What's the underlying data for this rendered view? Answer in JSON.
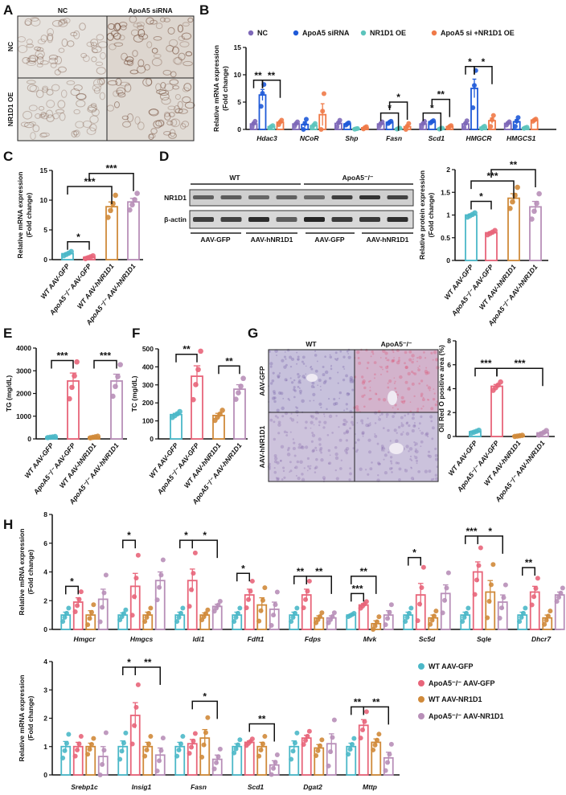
{
  "panel_labels": {
    "A": "A",
    "B": "B",
    "C": "C",
    "D": "D",
    "E": "E",
    "F": "F",
    "G": "G",
    "H": "H"
  },
  "panelA": {
    "col_headers": [
      "NC",
      "ApoA5 siRNA"
    ],
    "row_headers": [
      "NC",
      "NR1D1 OE"
    ]
  },
  "panelD_blot": {
    "groups": [
      "WT",
      "ApoA5⁻/⁻"
    ],
    "rows": [
      "NR1D1",
      "β-actin"
    ],
    "lane_labels": [
      "AAV-GFP",
      "AAV-hNR1D1",
      "AAV-GFP",
      "AAV-hNR1D1"
    ]
  },
  "panelG_images": {
    "cols": [
      "WT",
      "ApoA5⁻/⁻"
    ],
    "rows": [
      "AAV-GFP",
      "AAV-hNR1D1"
    ]
  },
  "legend_H": [
    {
      "name": "WT AAV-GFP",
      "color": "#4bb8c8"
    },
    {
      "name": "ApoA5⁻/⁻ AAV-GFP",
      "color": "#e8657a"
    },
    {
      "name": "WT AAV-NR1D1",
      "color": "#d08a3a"
    },
    {
      "name": "ApoA5⁻/⁻ AAV-NR1D1",
      "color": "#b88fb8"
    }
  ],
  "chart_data": [
    {
      "id": "B",
      "type": "bar",
      "ylabel": [
        "Relative mRNA expression",
        "(Fold change)"
      ],
      "ylim": [
        0,
        15
      ],
      "yticks": [
        0,
        5,
        10,
        15
      ],
      "legend": "top",
      "series": [
        {
          "name": "NC",
          "color": "#7e68b8"
        },
        {
          "name": "ApoA5 siRNA",
          "color": "#1f5ad8"
        },
        {
          "name": "NR1D1 OE",
          "color": "#5cc4bc"
        },
        {
          "name": "ApoA5 si +NR1D1 OE",
          "color": "#f07a48"
        }
      ],
      "categories": [
        "Hdac3",
        "NCoR",
        "Shp",
        "Fasn",
        "Scd1",
        "HMGCR",
        "HMGCS1"
      ],
      "values": [
        [
          1.0,
          6.3,
          0.5,
          1.3
        ],
        [
          1.0,
          0.9,
          0.7,
          2.7
        ],
        [
          1.1,
          1.0,
          0.1,
          0.3
        ],
        [
          1.0,
          1.3,
          0.15,
          0.5
        ],
        [
          1.0,
          1.4,
          0.15,
          0.5
        ],
        [
          1.0,
          7.5,
          0.4,
          1.6
        ],
        [
          1.1,
          1.4,
          0.3,
          1.7
        ]
      ],
      "sem": [
        [
          0.25,
          1.0,
          0.1,
          0.2
        ],
        [
          0.2,
          0.5,
          0.2,
          2.0
        ],
        [
          0.3,
          0.1,
          0.03,
          0.1
        ],
        [
          0.2,
          0.1,
          0.05,
          0.3
        ],
        [
          0.25,
          0.1,
          0.05,
          0.1
        ],
        [
          0.3,
          1.7,
          0.1,
          0.5
        ],
        [
          0.15,
          0.4,
          0.05,
          0.1
        ]
      ],
      "n": 3,
      "sig": [
        {
          "cat": 0,
          "from": 0,
          "to": 1,
          "y": 9,
          "label": "**"
        },
        {
          "cat": 0,
          "from": 1,
          "to": 3,
          "y": 9,
          "label": "**"
        },
        {
          "cat": 3,
          "from": 0,
          "to": 2,
          "y": 3,
          "label": "*"
        },
        {
          "cat": 3,
          "from": 1,
          "to": 3,
          "y": 5,
          "label": "*"
        },
        {
          "cat": 4,
          "from": 0,
          "to": 2,
          "y": 3,
          "label": "*"
        },
        {
          "cat": 4,
          "from": 1,
          "to": 3,
          "y": 5.5,
          "label": "**"
        },
        {
          "cat": 5,
          "from": 0,
          "to": 1,
          "y": 11.5,
          "label": "*"
        },
        {
          "cat": 5,
          "from": 1,
          "to": 3,
          "y": 11.5,
          "label": "*"
        }
      ]
    },
    {
      "id": "C",
      "type": "bar",
      "ylabel": [
        "Relative mRNA expression",
        "(Fold change)"
      ],
      "ylim": [
        0,
        15
      ],
      "yticks": [
        0,
        5,
        10,
        15
      ],
      "categories": [
        "WT AAV-GFP",
        "ApoA5⁻/⁻ AAV-GFP",
        "WT AAV-hNR1D1",
        "ApoA5⁻/⁻ AAV-hNR1D1"
      ],
      "colors": [
        "#4bb8c8",
        "#e8657a",
        "#d08a3a",
        "#b88fb8"
      ],
      "values": [
        1.0,
        0.4,
        8.9,
        9.7
      ],
      "sem": [
        0.15,
        0.1,
        0.8,
        0.6
      ],
      "n": 4,
      "sig": [
        {
          "from": 0,
          "to": 1,
          "y": 3,
          "label": "*"
        },
        {
          "from": 0,
          "to": 2,
          "y": 12.3,
          "label": "***"
        },
        {
          "from": 1,
          "to": 3,
          "y": 14.5,
          "label": "***"
        }
      ]
    },
    {
      "id": "D",
      "type": "bar",
      "ylabel": [
        "Relative protein expression",
        "(Fold change)"
      ],
      "ylim": [
        0,
        2
      ],
      "yticks": [
        0,
        0.5,
        1.0,
        1.5,
        2.0
      ],
      "categories": [
        "WT AAV-GFP",
        "ApoA5⁻/⁻ AAV-GFP",
        "WT AAV-hNR1D1",
        "ApoA5⁻/⁻ AAV-hNR1D1"
      ],
      "colors": [
        "#4bb8c8",
        "#e8657a",
        "#d08a3a",
        "#b88fb8"
      ],
      "values": [
        1.0,
        0.61,
        1.37,
        1.18
      ],
      "sem": [
        0.02,
        0.02,
        0.1,
        0.12
      ],
      "n": 4,
      "sig": [
        {
          "from": 0,
          "to": 1,
          "y": 1.3,
          "label": "*"
        },
        {
          "from": 0,
          "to": 2,
          "y": 1.75,
          "label": "***"
        },
        {
          "from": 1,
          "to": 3,
          "y": 2.0,
          "label": "**"
        }
      ]
    },
    {
      "id": "E",
      "type": "bar",
      "ylabel": [
        "TG (mg/dL)"
      ],
      "ylim": [
        0,
        4000
      ],
      "yticks": [
        0,
        1000,
        2000,
        3000,
        4000
      ],
      "categories": [
        "WT AAV-GFP",
        "ApoA5⁻/⁻ AAV-GFP",
        "WT AAV-hNR1D1",
        "ApoA5⁻/⁻ AAV-hNR1D1"
      ],
      "colors": [
        "#4bb8c8",
        "#e8657a",
        "#d08a3a",
        "#b88fb8"
      ],
      "values": [
        80,
        2550,
        80,
        2550
      ],
      "sem": [
        10,
        350,
        15,
        300
      ],
      "n": 4,
      "sig": [
        {
          "from": 0,
          "to": 1,
          "y": 3450,
          "label": "***"
        },
        {
          "from": 2,
          "to": 3,
          "y": 3450,
          "label": "***"
        }
      ]
    },
    {
      "id": "F",
      "type": "bar",
      "ylabel": [
        "TC (mg/dL)"
      ],
      "ylim": [
        0,
        500
      ],
      "yticks": [
        0,
        100,
        200,
        300,
        400,
        500
      ],
      "categories": [
        "WT AAV-GFP",
        "ApoA5⁻/⁻ AAV-GFP",
        "WT AAV-hNR1D1",
        "ApoA5⁻/⁻ AAV-hNR1D1"
      ],
      "colors": [
        "#4bb8c8",
        "#e8657a",
        "#d08a3a",
        "#b88fb8"
      ],
      "values": [
        135,
        348,
        130,
        276
      ],
      "sem": [
        7,
        58,
        12,
        25
      ],
      "n": 4,
      "sig": [
        {
          "from": 0,
          "to": 1,
          "y": 470,
          "label": "**"
        },
        {
          "from": 2,
          "to": 3,
          "y": 405,
          "label": "**"
        }
      ]
    },
    {
      "id": "G",
      "type": "bar",
      "ylabel": [
        "Oil Red O positive area (%)"
      ],
      "ylim": [
        0,
        8
      ],
      "yticks": [
        0,
        2,
        4,
        6,
        8
      ],
      "categories": [
        "WT AAV-GFP",
        "ApoA5⁻/⁻ AAV-GFP",
        "WT AAV-hNR1D1",
        "ApoA5⁻/⁻ AAV-hNR1D1"
      ],
      "colors": [
        "#4bb8c8",
        "#e8657a",
        "#d08a3a",
        "#b88fb8"
      ],
      "values": [
        0.4,
        4.2,
        0.05,
        0.3
      ],
      "sem": [
        0.05,
        0.15,
        0.02,
        0.08
      ],
      "n": 4,
      "sig": [
        {
          "from": 0,
          "to": 1,
          "y": 5.7,
          "label": "***"
        },
        {
          "from": 1,
          "to": 3,
          "y": 5.7,
          "label": "***"
        }
      ]
    },
    {
      "id": "H1",
      "type": "bar",
      "ylabel": [
        "Relative mRNA expression",
        "(Fold change)"
      ],
      "ylim": [
        0,
        8
      ],
      "yticks": [
        0,
        2,
        4,
        6,
        8
      ],
      "series": [
        {
          "name": "WT AAV-GFP",
          "color": "#4bb8c8"
        },
        {
          "name": "ApoA5⁻/⁻ AAV-GFP",
          "color": "#e8657a"
        },
        {
          "name": "WT AAV-NR1D1",
          "color": "#d08a3a"
        },
        {
          "name": "ApoA5⁻/⁻ AAV-NR1D1",
          "color": "#b88fb8"
        }
      ],
      "categories": [
        "Hmgcr",
        "Hmgcs",
        "Idi1",
        "Fdft1",
        "Fdps",
        "Mvk",
        "Sc5d",
        "Sqle",
        "Dhcr7"
      ],
      "values": [
        [
          1.0,
          1.9,
          1.0,
          2.1
        ],
        [
          1.0,
          3.0,
          1.0,
          3.4
        ],
        [
          1.0,
          3.4,
          1.0,
          1.6
        ],
        [
          1.0,
          2.4,
          1.7,
          1.4
        ],
        [
          1.0,
          2.4,
          0.8,
          0.8
        ],
        [
          1.0,
          1.7,
          0.4,
          1.0
        ],
        [
          1.0,
          2.4,
          0.8,
          2.5
        ],
        [
          1.0,
          4.0,
          2.6,
          1.9
        ],
        [
          1.0,
          2.6,
          0.8,
          2.4
        ]
      ],
      "sem": [
        [
          0.2,
          0.3,
          0.3,
          0.7
        ],
        [
          0.15,
          0.9,
          0.2,
          0.6
        ],
        [
          0.2,
          0.8,
          0.15,
          0.15
        ],
        [
          0.2,
          0.4,
          0.5,
          0.5
        ],
        [
          0.2,
          0.4,
          0.15,
          0.15
        ],
        [
          0.05,
          0.1,
          0.2,
          0.3
        ],
        [
          0.2,
          0.8,
          0.2,
          0.6
        ],
        [
          0.2,
          0.7,
          0.8,
          0.5
        ],
        [
          0.2,
          0.4,
          0.2,
          0.2
        ]
      ],
      "n": 4,
      "sig": [
        {
          "cat": 0,
          "from": 0,
          "to": 1,
          "y": 3.0,
          "label": "*"
        },
        {
          "cat": 1,
          "from": 0,
          "to": 1,
          "y": 6.2,
          "label": "*"
        },
        {
          "cat": 2,
          "from": 0,
          "to": 1,
          "y": 6.2,
          "label": "*"
        },
        {
          "cat": 2,
          "from": 1,
          "to": 3,
          "y": 6.2,
          "label": "*"
        },
        {
          "cat": 3,
          "from": 0,
          "to": 1,
          "y": 3.9,
          "label": "*"
        },
        {
          "cat": 4,
          "from": 0,
          "to": 1,
          "y": 3.7,
          "label": "**"
        },
        {
          "cat": 4,
          "from": 1,
          "to": 3,
          "y": 3.7,
          "label": "**"
        },
        {
          "cat": 5,
          "from": 0,
          "to": 1,
          "y": 2.5,
          "label": "***"
        },
        {
          "cat": 5,
          "from": 0,
          "to": 2,
          "y": 3.7,
          "label": "**"
        },
        {
          "cat": 6,
          "from": 0,
          "to": 1,
          "y": 5.0,
          "label": "*"
        },
        {
          "cat": 7,
          "from": 0,
          "to": 1,
          "y": 6.5,
          "label": "***"
        },
        {
          "cat": 7,
          "from": 1,
          "to": 3,
          "y": 6.5,
          "label": "*"
        },
        {
          "cat": 8,
          "from": 0,
          "to": 1,
          "y": 4.3,
          "label": "**"
        }
      ]
    },
    {
      "id": "H2",
      "type": "bar",
      "ylabel": [
        "Relative mRNA expression",
        "(Fold change)"
      ],
      "ylim": [
        0,
        4
      ],
      "yticks": [
        0,
        1,
        2,
        3,
        4
      ],
      "series": [
        {
          "name": "WT AAV-GFP",
          "color": "#4bb8c8"
        },
        {
          "name": "ApoA5⁻/⁻ AAV-GFP",
          "color": "#e8657a"
        },
        {
          "name": "WT AAV-NR1D1",
          "color": "#d08a3a"
        },
        {
          "name": "ApoA5⁻/⁻ AAV-NR1D1",
          "color": "#b88fb8"
        }
      ],
      "categories": [
        "Srebp1c",
        "Insig1",
        "Fasn",
        "Scd1",
        "Dgat2",
        "Mttp"
      ],
      "values": [
        [
          1.0,
          1.0,
          1.0,
          0.65
        ],
        [
          1.0,
          2.1,
          1.0,
          0.7
        ],
        [
          1.0,
          1.1,
          1.3,
          0.55
        ],
        [
          1.0,
          1.15,
          1.0,
          0.35
        ],
        [
          1.0,
          1.3,
          0.95,
          1.1
        ],
        [
          1.0,
          1.75,
          1.15,
          0.6
        ]
      ],
      "sem": [
        [
          0.18,
          0.15,
          0.12,
          0.35
        ],
        [
          0.2,
          0.45,
          0.15,
          0.25
        ],
        [
          0.15,
          0.15,
          0.3,
          0.15
        ],
        [
          0.1,
          0.05,
          0.15,
          0.15
        ],
        [
          0.2,
          0.1,
          0.12,
          0.35
        ],
        [
          0.12,
          0.2,
          0.12,
          0.2
        ]
      ],
      "n": 4,
      "sig": [
        {
          "cat": 1,
          "from": 0,
          "to": 1,
          "y": 3.8,
          "label": "*"
        },
        {
          "cat": 1,
          "from": 1,
          "to": 3,
          "y": 3.8,
          "label": "**"
        },
        {
          "cat": 2,
          "from": 1,
          "to": 3,
          "y": 2.6,
          "label": "*"
        },
        {
          "cat": 3,
          "from": 1,
          "to": 3,
          "y": 1.8,
          "label": "**"
        },
        {
          "cat": 5,
          "from": 0,
          "to": 1,
          "y": 2.4,
          "label": "**"
        },
        {
          "cat": 5,
          "from": 1,
          "to": 3,
          "y": 2.4,
          "label": "**"
        }
      ]
    }
  ]
}
